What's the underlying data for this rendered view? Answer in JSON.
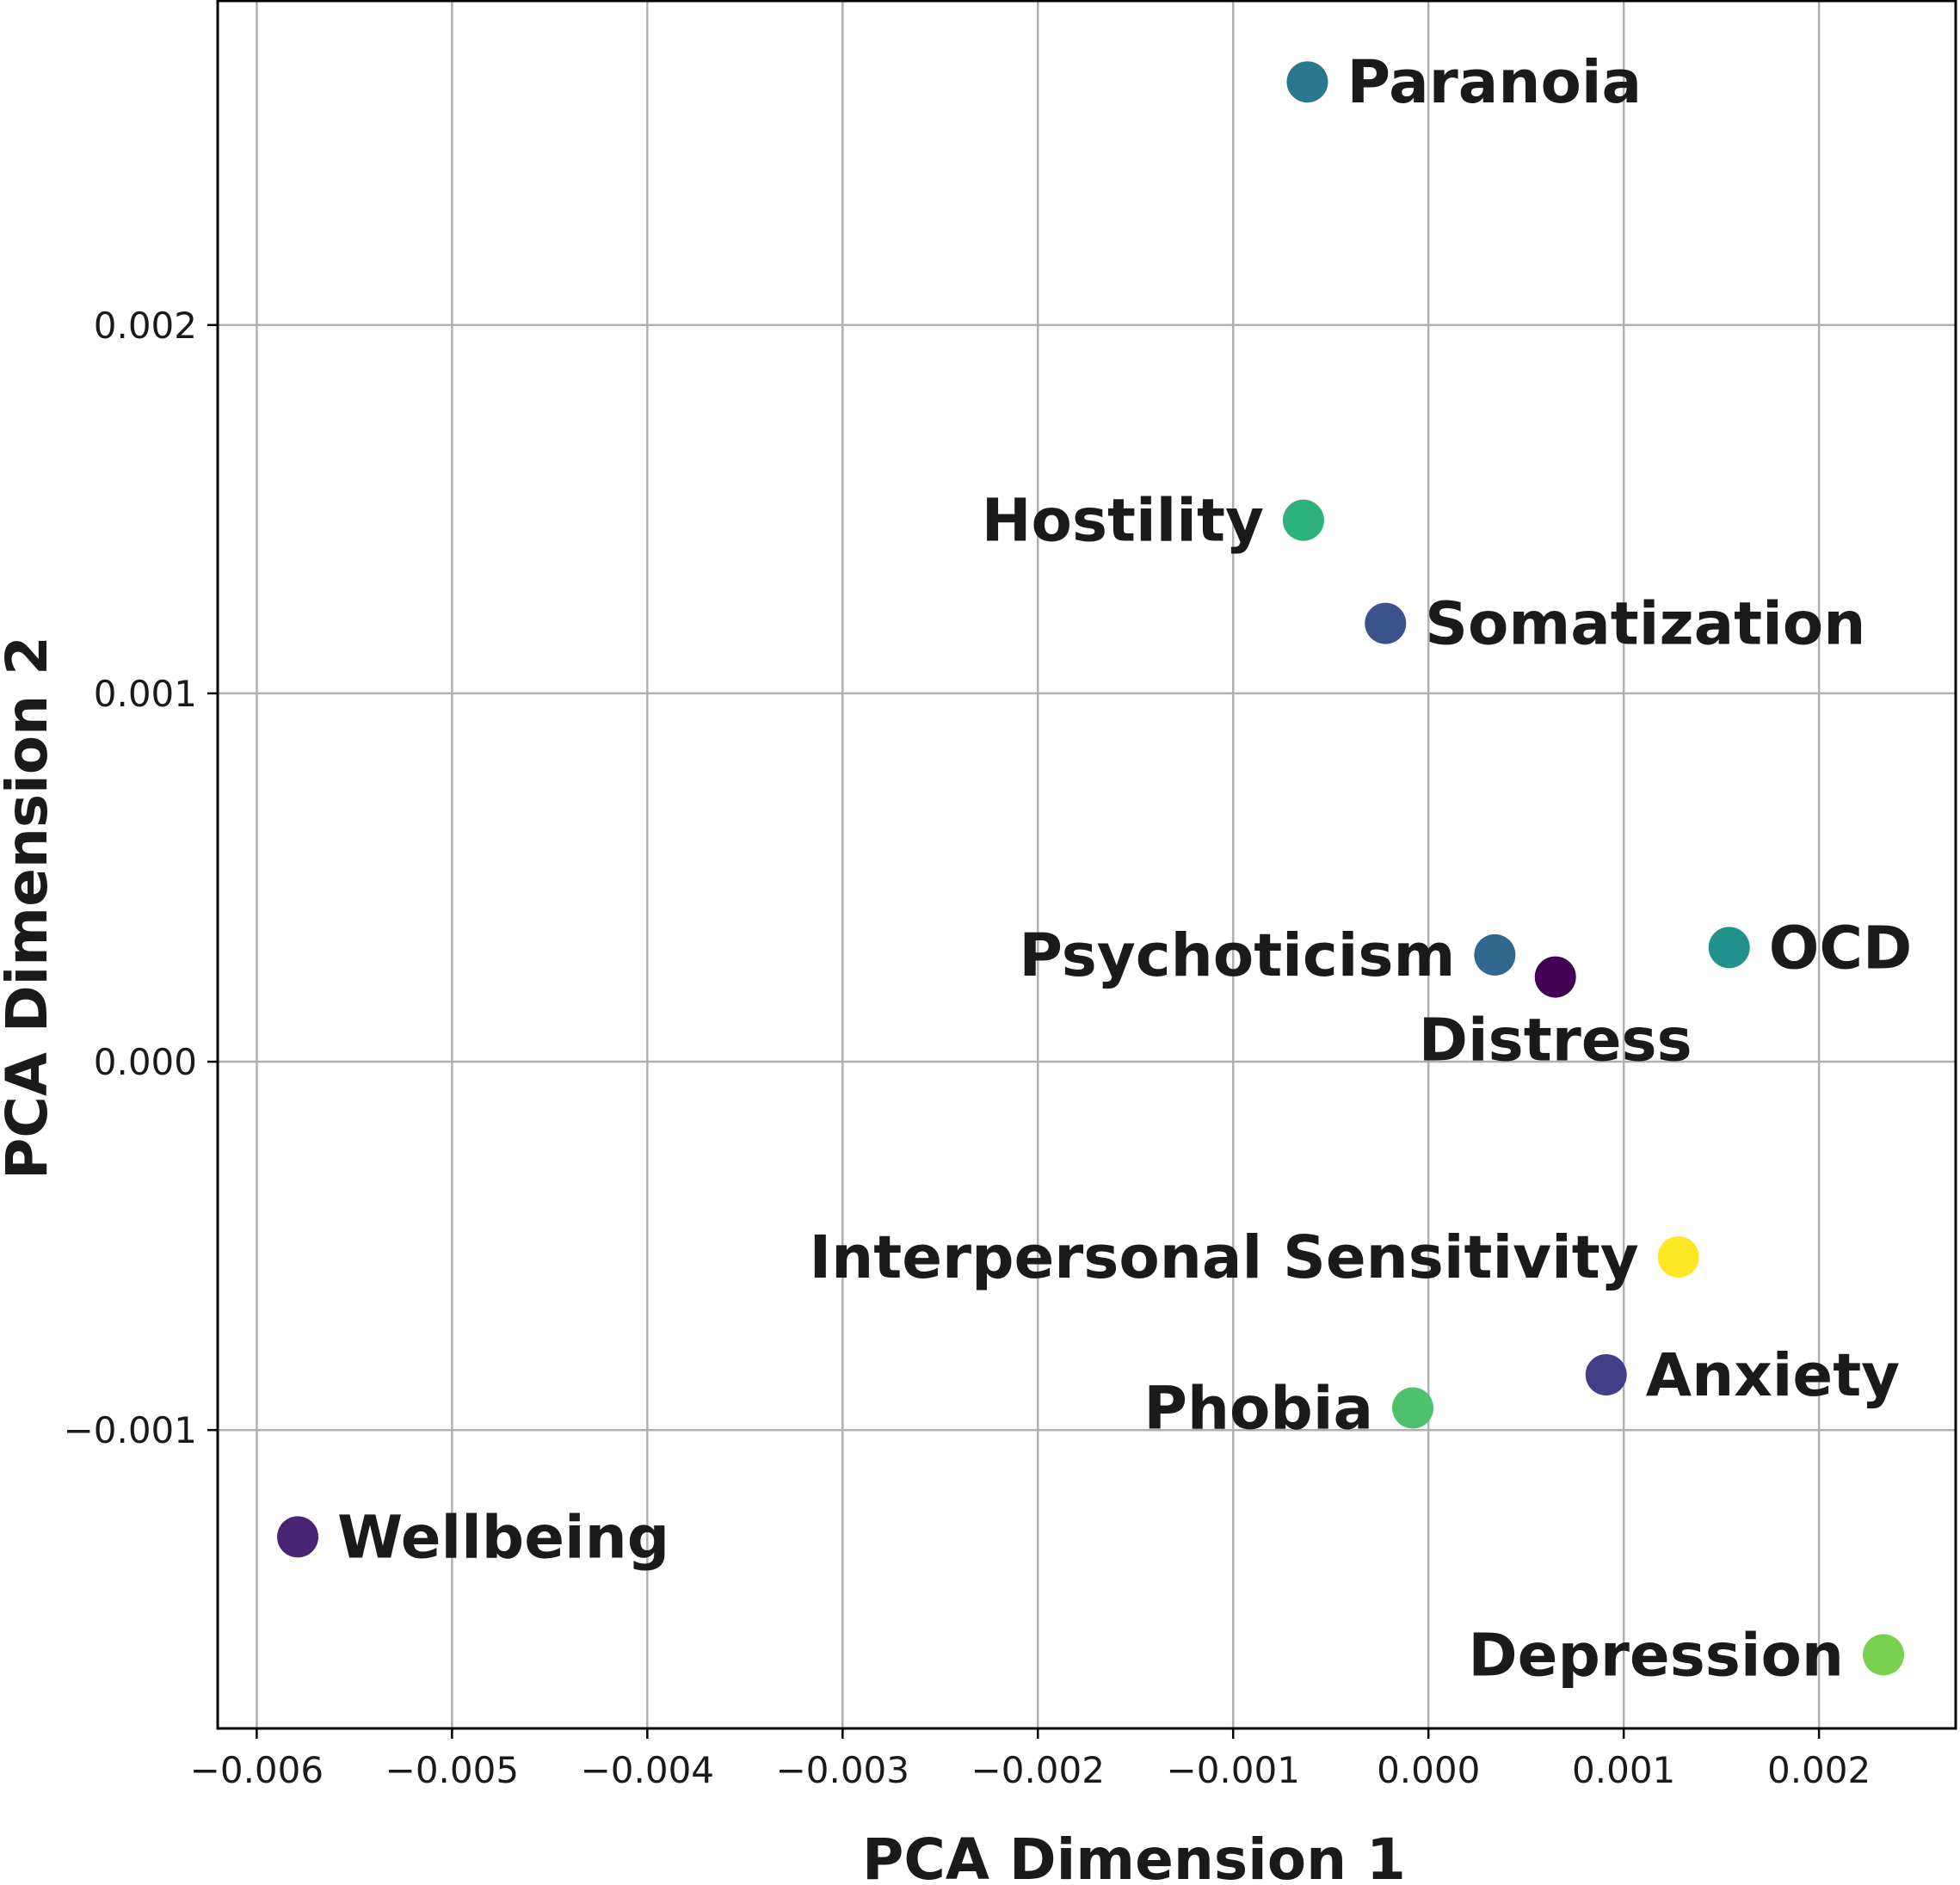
{
  "chart_data": {
    "type": "scatter",
    "title": "",
    "xlabel": "PCA Dimension 1",
    "ylabel": "PCA Dimension 2",
    "xlim": [
      -0.0062,
      0.0027
    ],
    "ylim": [
      -0.00181,
      0.00288
    ],
    "grid": true,
    "x_ticks": [
      {
        "value": -0.006,
        "label": "−0.006"
      },
      {
        "value": -0.005,
        "label": "−0.005"
      },
      {
        "value": -0.004,
        "label": "−0.004"
      },
      {
        "value": -0.003,
        "label": "−0.003"
      },
      {
        "value": -0.002,
        "label": "−0.002"
      },
      {
        "value": -0.001,
        "label": "−0.001"
      },
      {
        "value": 0.0,
        "label": "0.000"
      },
      {
        "value": 0.001,
        "label": "0.001"
      },
      {
        "value": 0.002,
        "label": "0.002"
      }
    ],
    "y_ticks": [
      {
        "value": -0.001,
        "label": "−0.001"
      },
      {
        "value": 0.0,
        "label": "0.000"
      },
      {
        "value": 0.001,
        "label": "0.001"
      },
      {
        "value": 0.002,
        "label": "0.002"
      }
    ],
    "points": [
      {
        "label": "Paranoia",
        "x": -0.00062,
        "y": 0.00266,
        "color": "#2a788e",
        "label_pos": "right"
      },
      {
        "label": "Hostility",
        "x": -0.00064,
        "y": 0.00147,
        "color": "#2db27d",
        "label_pos": "left"
      },
      {
        "label": "Somatization",
        "x": -0.00022,
        "y": 0.00119,
        "color": "#3b528b",
        "label_pos": "right"
      },
      {
        "label": "Psychoticism",
        "x": 0.00034,
        "y": 0.00029,
        "color": "#31688e",
        "label_pos": "left"
      },
      {
        "label": "Distress",
        "x": 0.00065,
        "y": 0.00023,
        "color": "#440154",
        "label_pos": "below"
      },
      {
        "label": "OCD",
        "x": 0.00154,
        "y": 0.00031,
        "color": "#21918c",
        "label_pos": "right"
      },
      {
        "label": "Interpersonal Sensitivity",
        "x": 0.00128,
        "y": -0.00053,
        "color": "#fde725",
        "label_pos": "left"
      },
      {
        "label": "Anxiety",
        "x": 0.00091,
        "y": -0.00085,
        "color": "#433e85",
        "label_pos": "right"
      },
      {
        "label": "Phobia",
        "x": -8e-05,
        "y": -0.00094,
        "color": "#4cc26c",
        "label_pos": "left"
      },
      {
        "label": "Wellbeing",
        "x": -0.00579,
        "y": -0.00129,
        "color": "#482475",
        "label_pos": "right"
      },
      {
        "label": "Depression",
        "x": 0.00233,
        "y": -0.00161,
        "color": "#7ad151",
        "label_pos": "left"
      }
    ]
  }
}
